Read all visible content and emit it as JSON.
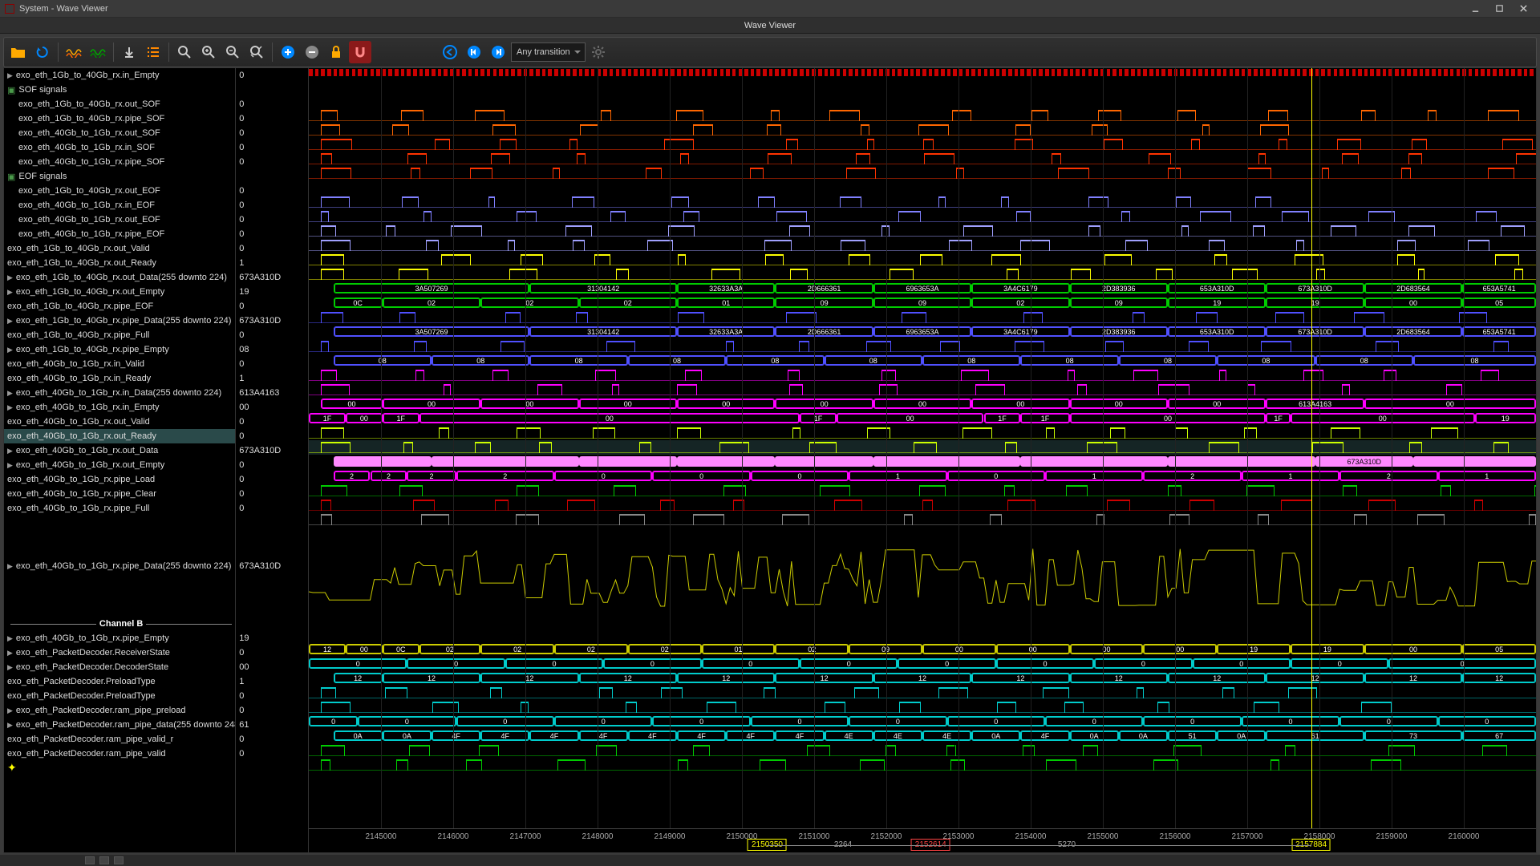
{
  "window": {
    "title": "System - Wave Viewer",
    "subtitle": "Wave Viewer"
  },
  "toolbar": {
    "transition_label": "Any transition"
  },
  "cursor_time": 2157884,
  "time_axis": {
    "start": 2144000,
    "end": 2161000,
    "step": 1000,
    "ticks": [
      2145000,
      2146000,
      2147000,
      2148000,
      2149000,
      2150000,
      2151000,
      2152000,
      2153000,
      2154000,
      2155000,
      2156000,
      2157000,
      2158000,
      2159000,
      2160000
    ]
  },
  "markers": {
    "left": {
      "time": 2150350,
      "label": "2150350"
    },
    "right": {
      "time": 2157884,
      "label": "2157884"
    },
    "center": {
      "time": 2152614,
      "label": "2152614"
    },
    "measure_left": {
      "value": 2264,
      "at": 2151400
    },
    "measure_right": {
      "value": 5270,
      "at": 2154500
    }
  },
  "selected_row_index": 24,
  "signals": [
    {
      "name": "exo_eth_1Gb_to_40Gb_rx.in_Empty",
      "value": "0",
      "expand": true,
      "type": "bus",
      "color": "#00cccc"
    },
    {
      "name": "SOF signals",
      "value": "",
      "group": true
    },
    {
      "name": "exo_eth_1Gb_to_40Gb_rx.out_SOF",
      "value": "0",
      "indent": 1,
      "type": "dig",
      "color": "#ff6600"
    },
    {
      "name": "exo_eth_1Gb_to_40Gb_rx.pipe_SOF",
      "value": "0",
      "indent": 1,
      "type": "dig",
      "color": "#ff6600"
    },
    {
      "name": "exo_eth_40Gb_to_1Gb_rx.out_SOF",
      "value": "0",
      "indent": 1,
      "type": "dig",
      "color": "#ff3300"
    },
    {
      "name": "exo_eth_40Gb_to_1Gb_rx.in_SOF",
      "value": "0",
      "indent": 1,
      "type": "dig",
      "color": "#ff3300"
    },
    {
      "name": "exo_eth_40Gb_to_1Gb_rx.pipe_SOF",
      "value": "0",
      "indent": 1,
      "type": "dig",
      "color": "#ff3300"
    },
    {
      "name": "EOF signals",
      "value": "",
      "group": true
    },
    {
      "name": "exo_eth_1Gb_to_40Gb_rx.out_EOF",
      "value": "0",
      "indent": 1,
      "type": "dig",
      "color": "#8080ff"
    },
    {
      "name": "exo_eth_40Gb_to_1Gb_rx.in_EOF",
      "value": "0",
      "indent": 1,
      "type": "dig",
      "color": "#8080ff"
    },
    {
      "name": "exo_eth_40Gb_to_1Gb_rx.out_EOF",
      "value": "0",
      "indent": 1,
      "type": "dig",
      "color": "#a0a0ff"
    },
    {
      "name": "exo_eth_40Gb_to_1Gb_rx.pipe_EOF",
      "value": "0",
      "indent": 1,
      "type": "dig",
      "color": "#a0a0ff"
    },
    {
      "name": "exo_eth_1Gb_to_40Gb_rx.out_Valid",
      "value": "0",
      "type": "dig",
      "color": "#ffff00"
    },
    {
      "name": "exo_eth_1Gb_to_40Gb_rx.out_Ready",
      "value": "1",
      "type": "dig",
      "color": "#ffff00"
    },
    {
      "name": "exo_eth_1Gb_to_40Gb_rx.out_Data(255 downto 224)",
      "value": "673A310D",
      "expand": true,
      "type": "bus",
      "color": "#00cc00",
      "segs": [
        [
          "3A507269",
          0.02,
          0.18
        ],
        [
          "31304142",
          0.18,
          0.3
        ],
        [
          "32633A3A",
          0.3,
          0.38
        ],
        [
          "2D666361",
          0.38,
          0.46
        ],
        [
          "6963653A",
          0.46,
          0.54
        ],
        [
          "3A4C6179",
          0.54,
          0.62
        ],
        [
          "2D383936",
          0.62,
          0.7
        ],
        [
          "653A310D",
          0.7,
          0.78
        ],
        [
          "673A310D",
          0.78,
          0.86
        ],
        [
          "2D683564",
          0.86,
          0.94
        ],
        [
          "653A5741",
          0.94,
          1.0
        ]
      ]
    },
    {
      "name": "exo_eth_1Gb_to_40Gb_rx.out_Empty",
      "value": "19",
      "expand": true,
      "type": "bus",
      "color": "#00cc00",
      "segs": [
        [
          "0C",
          0.02,
          0.06
        ],
        [
          "02",
          0.06,
          0.14
        ],
        [
          "02",
          0.14,
          0.22
        ],
        [
          "02",
          0.22,
          0.3
        ],
        [
          "01",
          0.3,
          0.38
        ],
        [
          "09",
          0.38,
          0.46
        ],
        [
          "09",
          0.46,
          0.54
        ],
        [
          "02",
          0.54,
          0.62
        ],
        [
          "09",
          0.62,
          0.7
        ],
        [
          "19",
          0.7,
          0.78
        ],
        [
          "19",
          0.78,
          0.86
        ],
        [
          "00",
          0.86,
          0.94
        ],
        [
          "05",
          0.94,
          1.0
        ]
      ]
    },
    {
      "name": "exo_eth_1Gb_to_40Gb_rx.pipe_EOF",
      "value": "0",
      "type": "dig",
      "color": "#5050ff"
    },
    {
      "name": "exo_eth_1Gb_to_40Gb_rx.pipe_Data(255 downto 224)",
      "value": "673A310D",
      "expand": true,
      "type": "bus",
      "color": "#5050ff",
      "segs": [
        [
          "3A507269",
          0.02,
          0.18
        ],
        [
          "31304142",
          0.18,
          0.3
        ],
        [
          "32633A3A",
          0.3,
          0.38
        ],
        [
          "2D666361",
          0.38,
          0.46
        ],
        [
          "6963653A",
          0.46,
          0.54
        ],
        [
          "3A4C6179",
          0.54,
          0.62
        ],
        [
          "2D383936",
          0.62,
          0.7
        ],
        [
          "653A310D",
          0.7,
          0.78
        ],
        [
          "673A310D",
          0.78,
          0.86
        ],
        [
          "2D683564",
          0.86,
          0.94
        ],
        [
          "653A5741",
          0.94,
          1.0
        ]
      ]
    },
    {
      "name": "exo_eth_1Gb_to_40Gb_rx.pipe_Full",
      "value": "0",
      "type": "dig",
      "color": "#5050ff"
    },
    {
      "name": "exo_eth_1Gb_to_40Gb_rx.pipe_Empty",
      "value": "08",
      "expand": true,
      "type": "bus",
      "color": "#5050ff",
      "segs": [
        [
          "08",
          0.02,
          0.1
        ],
        [
          "08",
          0.1,
          0.18
        ],
        [
          "08",
          0.18,
          0.26
        ],
        [
          "08",
          0.26,
          0.34
        ],
        [
          "08",
          0.34,
          0.42
        ],
        [
          "08",
          0.42,
          0.5
        ],
        [
          "08",
          0.5,
          0.58
        ],
        [
          "08",
          0.58,
          0.66
        ],
        [
          "08",
          0.66,
          0.74
        ],
        [
          "08",
          0.74,
          0.82
        ],
        [
          "08",
          0.82,
          0.9
        ],
        [
          "08",
          0.9,
          1.0
        ]
      ]
    },
    {
      "name": "exo_eth_40Gb_to_1Gb_rx.in_Valid",
      "value": "0",
      "type": "dig",
      "color": "#ff00ff"
    },
    {
      "name": "exo_eth_40Gb_to_1Gb_rx.in_Ready",
      "value": "1",
      "type": "dig",
      "color": "#ff00ff"
    },
    {
      "name": "exo_eth_40Gb_to_1Gb_rx.in_Data(255 downto 224)",
      "value": "613A4163",
      "expand": true,
      "type": "bus",
      "color": "#ff00ff",
      "segs": [
        [
          "00",
          0.01,
          0.06
        ],
        [
          "00",
          0.06,
          0.14
        ],
        [
          "00",
          0.14,
          0.22
        ],
        [
          "00",
          0.22,
          0.3
        ],
        [
          "00",
          0.3,
          0.38
        ],
        [
          "00",
          0.38,
          0.46
        ],
        [
          "00",
          0.46,
          0.54
        ],
        [
          "00",
          0.54,
          0.62
        ],
        [
          "00",
          0.62,
          0.7
        ],
        [
          "00",
          0.7,
          0.78
        ],
        [
          "613A4163",
          0.78,
          0.86
        ],
        [
          "00",
          0.86,
          1.0
        ]
      ]
    },
    {
      "name": "exo_eth_40Gb_to_1Gb_rx.in_Empty",
      "value": "00",
      "expand": true,
      "type": "bus",
      "color": "#ff00ff",
      "segs": [
        [
          "1F",
          0.0,
          0.03
        ],
        [
          "00",
          0.03,
          0.06
        ],
        [
          "1F",
          0.06,
          0.09
        ],
        [
          "00",
          0.09,
          0.4
        ],
        [
          "1F",
          0.4,
          0.43
        ],
        [
          "00",
          0.43,
          0.55
        ],
        [
          "1F",
          0.55,
          0.58
        ],
        [
          "1F",
          0.58,
          0.62
        ],
        [
          "00",
          0.62,
          0.78
        ],
        [
          "1F",
          0.78,
          0.8
        ],
        [
          "00",
          0.8,
          0.95
        ],
        [
          "19",
          0.95,
          1.0
        ]
      ]
    },
    {
      "name": "exo_eth_40Gb_to_1Gb_rx.out_Valid",
      "value": "0",
      "type": "dig",
      "color": "#ccff00"
    },
    {
      "name": "exo_eth_40Gb_to_1Gb_rx.out_Ready",
      "value": "0",
      "type": "dig",
      "color": "#ccff00",
      "selected": true
    },
    {
      "name": "exo_eth_40Gb_to_1Gb_rx.out_Data",
      "value": "673A310D",
      "expand": true,
      "type": "bus",
      "color": "#ff88ff",
      "segs": [
        [
          "",
          0.02,
          0.1
        ],
        [
          "",
          0.1,
          0.22
        ],
        [
          "",
          0.22,
          0.3
        ],
        [
          "",
          0.3,
          0.38
        ],
        [
          "",
          0.38,
          0.46
        ],
        [
          "",
          0.46,
          0.58
        ],
        [
          "",
          0.58,
          0.7
        ],
        [
          "",
          0.7,
          0.82
        ],
        [
          "673A310D",
          0.82,
          0.9
        ],
        [
          "",
          0.9,
          1.0
        ]
      ]
    },
    {
      "name": "exo_eth_40Gb_to_1Gb_rx.out_Empty",
      "value": "0",
      "expand": true,
      "type": "bus",
      "color": "#ff00ff",
      "segs": [
        [
          "2",
          0.02,
          0.05
        ],
        [
          "2",
          0.05,
          0.08
        ],
        [
          "2",
          0.08,
          0.12
        ],
        [
          "2",
          0.12,
          0.2
        ],
        [
          "0",
          0.2,
          0.28
        ],
        [
          "0",
          0.28,
          0.36
        ],
        [
          "0",
          0.36,
          0.44
        ],
        [
          "1",
          0.44,
          0.52
        ],
        [
          "0",
          0.52,
          0.6
        ],
        [
          "1",
          0.6,
          0.68
        ],
        [
          "2",
          0.68,
          0.76
        ],
        [
          "1",
          0.76,
          0.84
        ],
        [
          "2",
          0.84,
          0.92
        ],
        [
          "1",
          0.92,
          1.0
        ]
      ]
    },
    {
      "name": "exo_eth_40Gb_to_1Gb_rx.pipe_Load",
      "value": "0",
      "type": "dig",
      "color": "#00cc00"
    },
    {
      "name": "exo_eth_40Gb_to_1Gb_rx.pipe_Clear",
      "value": "0",
      "type": "dig",
      "color": "#cc0000"
    },
    {
      "name": "exo_eth_40Gb_to_1Gb_rx.pipe_Full",
      "value": "0",
      "type": "dig",
      "color": "#888888"
    },
    {
      "name": "",
      "value": "",
      "blank": true
    },
    {
      "name": "exo_eth_40Gb_to_1Gb_rx.pipe_Data(255 downto 224)",
      "value": "673A310D",
      "expand": true,
      "type": "analog",
      "color": "#cccc00",
      "height": 5
    },
    {
      "name": "",
      "value": "",
      "blank": true
    },
    {
      "name": "Channel B",
      "value": "",
      "divider": true
    },
    {
      "name": "exo_eth_40Gb_to_1Gb_rx.pipe_Empty",
      "value": "19",
      "expand": true,
      "type": "bus",
      "color": "#cccc00",
      "segs": [
        [
          "12",
          0.0,
          0.03
        ],
        [
          "00",
          0.03,
          0.06
        ],
        [
          "0C",
          0.06,
          0.09
        ],
        [
          "02",
          0.09,
          0.14
        ],
        [
          "02",
          0.14,
          0.2
        ],
        [
          "02",
          0.2,
          0.26
        ],
        [
          "02",
          0.26,
          0.32
        ],
        [
          "01",
          0.32,
          0.38
        ],
        [
          "02",
          0.38,
          0.44
        ],
        [
          "09",
          0.44,
          0.5
        ],
        [
          "00",
          0.5,
          0.56
        ],
        [
          "00",
          0.56,
          0.62
        ],
        [
          "00",
          0.62,
          0.68
        ],
        [
          "00",
          0.68,
          0.74
        ],
        [
          "19",
          0.74,
          0.8
        ],
        [
          "19",
          0.8,
          0.86
        ],
        [
          "00",
          0.86,
          0.94
        ],
        [
          "05",
          0.94,
          1.0
        ]
      ]
    },
    {
      "name": "exo_eth_PacketDecoder.ReceiverState",
      "value": "0",
      "expand": true,
      "type": "bus",
      "color": "#00cccc",
      "segs": [
        [
          "0",
          0.0,
          0.08
        ],
        [
          "0",
          0.08,
          0.16
        ],
        [
          "0",
          0.16,
          0.24
        ],
        [
          "0",
          0.24,
          0.32
        ],
        [
          "0",
          0.32,
          0.4
        ],
        [
          "0",
          0.4,
          0.48
        ],
        [
          "0",
          0.48,
          0.56
        ],
        [
          "0",
          0.56,
          0.64
        ],
        [
          "0",
          0.64,
          0.72
        ],
        [
          "0",
          0.72,
          0.8
        ],
        [
          "0",
          0.8,
          0.88
        ],
        [
          "0",
          0.88,
          1.0
        ]
      ]
    },
    {
      "name": "exo_eth_PacketDecoder.DecoderState",
      "value": "00",
      "expand": true,
      "type": "bus",
      "color": "#00cccc",
      "segs": [
        [
          "12",
          0.02,
          0.06
        ],
        [
          "12",
          0.06,
          0.14
        ],
        [
          "12",
          0.14,
          0.22
        ],
        [
          "12",
          0.22,
          0.3
        ],
        [
          "12",
          0.3,
          0.38
        ],
        [
          "12",
          0.38,
          0.46
        ],
        [
          "12",
          0.46,
          0.54
        ],
        [
          "12",
          0.54,
          0.62
        ],
        [
          "12",
          0.62,
          0.7
        ],
        [
          "12",
          0.7,
          0.78
        ],
        [
          "12",
          0.78,
          0.86
        ],
        [
          "12",
          0.86,
          0.94
        ],
        [
          "12",
          0.94,
          1.0
        ]
      ]
    },
    {
      "name": "exo_eth_PacketDecoder.PreloadType",
      "value": "1",
      "type": "dig",
      "color": "#00cccc"
    },
    {
      "name": "exo_eth_PacketDecoder.PreloadType",
      "value": "0",
      "type": "dig",
      "color": "#00cccc"
    },
    {
      "name": "exo_eth_PacketDecoder.ram_pipe_preload",
      "value": "0",
      "expand": true,
      "type": "bus",
      "color": "#00cccc",
      "segs": [
        [
          "0",
          0.0,
          0.04
        ],
        [
          "0",
          0.04,
          0.12
        ],
        [
          "0",
          0.12,
          0.2
        ],
        [
          "0",
          0.2,
          0.28
        ],
        [
          "0",
          0.28,
          0.36
        ],
        [
          "0",
          0.36,
          0.44
        ],
        [
          "0",
          0.44,
          0.52
        ],
        [
          "0",
          0.52,
          0.6
        ],
        [
          "0",
          0.6,
          0.68
        ],
        [
          "0",
          0.68,
          0.76
        ],
        [
          "0",
          0.76,
          0.84
        ],
        [
          "0",
          0.84,
          0.92
        ],
        [
          "0",
          0.92,
          1.0
        ]
      ]
    },
    {
      "name": "exo_eth_PacketDecoder.ram_pipe_data(255 downto 248)",
      "value": "61",
      "expand": true,
      "type": "bus",
      "color": "#00cccc",
      "segs": [
        [
          "0A",
          0.02,
          0.06
        ],
        [
          "0A",
          0.06,
          0.1
        ],
        [
          "4F",
          0.1,
          0.14
        ],
        [
          "4F",
          0.14,
          0.18
        ],
        [
          "4F",
          0.18,
          0.22
        ],
        [
          "4F",
          0.22,
          0.26
        ],
        [
          "4F",
          0.26,
          0.3
        ],
        [
          "4F",
          0.3,
          0.34
        ],
        [
          "4F",
          0.34,
          0.38
        ],
        [
          "4F",
          0.38,
          0.42
        ],
        [
          "4E",
          0.42,
          0.46
        ],
        [
          "4E",
          0.46,
          0.5
        ],
        [
          "4E",
          0.5,
          0.54
        ],
        [
          "0A",
          0.54,
          0.58
        ],
        [
          "4F",
          0.58,
          0.62
        ],
        [
          "0A",
          0.62,
          0.66
        ],
        [
          "0A",
          0.66,
          0.7
        ],
        [
          "51",
          0.7,
          0.74
        ],
        [
          "0A",
          0.74,
          0.78
        ],
        [
          "61",
          0.78,
          0.86
        ],
        [
          "73",
          0.86,
          0.94
        ],
        [
          "67",
          0.94,
          1.0
        ]
      ]
    },
    {
      "name": "exo_eth_PacketDecoder.ram_pipe_valid_r",
      "value": "0",
      "type": "dig",
      "color": "#00cc00"
    },
    {
      "name": "exo_eth_PacketDecoder.ram_pipe_valid",
      "value": "0",
      "type": "dig",
      "color": "#00cc00"
    }
  ],
  "colors": {
    "bg": "#000000",
    "grid": "#222222",
    "cursor": "#ffff00",
    "toolbar_icons": {
      "folder": "#ffaa00",
      "reload": "#0088ff",
      "wave1": "#ffaa00",
      "wave2": "#00aa00",
      "download": "#cccccc",
      "list": "#ff8800",
      "search": "#cccccc",
      "plus": "#0088ff",
      "minus": "#888888",
      "lock": "#ffaa00",
      "magnet": "#cc3333",
      "nav": "#0088ff",
      "skip": "#0088ff",
      "gear": "#666666"
    }
  }
}
